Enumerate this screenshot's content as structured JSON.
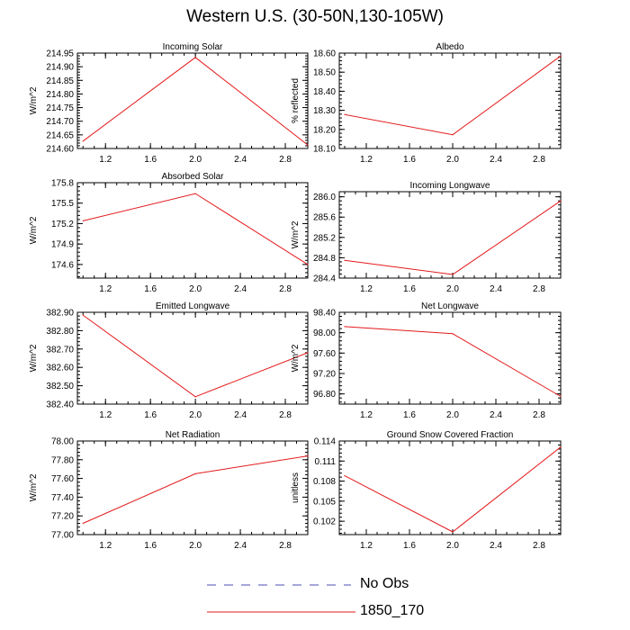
{
  "page": {
    "title": "Western U.S. (30-50N,130-105W)"
  },
  "legend": {
    "items": [
      {
        "label": "No Obs",
        "color": "#4b4bb4",
        "style": "dashed"
      },
      {
        "label": "1850_170",
        "color": "#e31a1c",
        "style": "solid"
      }
    ]
  },
  "chart_data": [
    {
      "type": "line",
      "title": "Incoming Solar",
      "ylabel": "W/m^2",
      "xlim": [
        0.95,
        3.0
      ],
      "xticks": [
        "1.2",
        "1.6",
        "2.0",
        "2.4",
        "2.8"
      ],
      "ylim": [
        214.6,
        214.95
      ],
      "yticks": [
        "214.60",
        "214.65",
        "214.70",
        "214.75",
        "214.80",
        "214.85",
        "214.90",
        "214.95"
      ],
      "series": [
        {
          "x": [
            1.0,
            2.0,
            3.0
          ],
          "values": [
            214.627,
            214.934,
            214.613
          ]
        }
      ]
    },
    {
      "type": "line",
      "title": "Albedo",
      "ylabel": "% reflected",
      "xlim": [
        0.95,
        3.0
      ],
      "xticks": [
        "1.2",
        "1.6",
        "2.0",
        "2.4",
        "2.8"
      ],
      "ylim": [
        18.1,
        18.6
      ],
      "yticks": [
        "18.10",
        "18.20",
        "18.30",
        "18.40",
        "18.50",
        "18.60"
      ],
      "series": [
        {
          "x": [
            1.0,
            2.0,
            3.0
          ],
          "values": [
            18.278,
            18.172,
            18.585
          ]
        }
      ]
    },
    {
      "type": "line",
      "title": "Absorbed Solar",
      "ylabel": "W/m^2",
      "xlim": [
        0.95,
        3.0
      ],
      "xticks": [
        "1.2",
        "1.6",
        "2.0",
        "2.4",
        "2.8"
      ],
      "ylim": [
        174.4,
        175.8
      ],
      "yticks": [
        "174.6",
        "174.9",
        "175.2",
        "175.5",
        "175.8"
      ],
      "series": [
        {
          "x": [
            1.0,
            2.0,
            3.0
          ],
          "values": [
            175.24,
            175.64,
            174.6
          ]
        }
      ]
    },
    {
      "type": "line",
      "title": "Incoming Longwave",
      "ylabel": "W/m^2",
      "xlim": [
        0.95,
        3.0
      ],
      "xticks": [
        "1.2",
        "1.6",
        "2.0",
        "2.4",
        "2.8"
      ],
      "ylim": [
        284.4,
        286.1
      ],
      "yticks": [
        "284.4",
        "284.8",
        "285.2",
        "285.6",
        "286.0"
      ],
      "series": [
        {
          "x": [
            1.0,
            2.0,
            3.0
          ],
          "values": [
            284.75,
            284.47,
            285.92
          ]
        }
      ]
    },
    {
      "type": "line",
      "title": "Emitted Longwave",
      "ylabel": "W/m^2",
      "xlim": [
        0.95,
        3.0
      ],
      "xticks": [
        "1.2",
        "1.6",
        "2.0",
        "2.4",
        "2.8"
      ],
      "ylim": [
        382.4,
        382.9
      ],
      "yticks": [
        "382.40",
        "382.50",
        "382.60",
        "382.70",
        "382.80",
        "382.90"
      ],
      "series": [
        {
          "x": [
            1.0,
            2.0,
            3.0
          ],
          "values": [
            382.885,
            382.44,
            382.68
          ]
        }
      ]
    },
    {
      "type": "line",
      "title": "Net Longwave",
      "ylabel": "W/m^2",
      "xlim": [
        0.95,
        3.0
      ],
      "xticks": [
        "1.2",
        "1.6",
        "2.0",
        "2.4",
        "2.8"
      ],
      "ylim": [
        96.6,
        98.4
      ],
      "yticks": [
        "96.80",
        "97.20",
        "97.60",
        "98.00",
        "98.40"
      ],
      "series": [
        {
          "x": [
            1.0,
            2.0,
            3.0
          ],
          "values": [
            98.12,
            97.98,
            96.75
          ]
        }
      ]
    },
    {
      "type": "line",
      "title": "Net Radiation",
      "ylabel": "W/m^2",
      "xlim": [
        0.95,
        3.0
      ],
      "xticks": [
        "1.2",
        "1.6",
        "2.0",
        "2.4",
        "2.8"
      ],
      "ylim": [
        77.0,
        78.0
      ],
      "yticks": [
        "77.00",
        "77.20",
        "77.40",
        "77.60",
        "77.80",
        "78.00"
      ],
      "series": [
        {
          "x": [
            1.0,
            2.0,
            3.0
          ],
          "values": [
            77.12,
            77.65,
            77.84
          ]
        }
      ]
    },
    {
      "type": "line",
      "title": "Ground Snow Covered Fraction",
      "ylabel": "unitless",
      "xlim": [
        0.95,
        3.0
      ],
      "xticks": [
        "1.2",
        "1.6",
        "2.0",
        "2.4",
        "2.8"
      ],
      "ylim": [
        0.1,
        0.114
      ],
      "yticks": [
        "0.102",
        "0.105",
        "0.108",
        "0.111",
        "0.114"
      ],
      "series": [
        {
          "x": [
            1.0,
            2.0,
            3.0
          ],
          "values": [
            0.1088,
            0.1004,
            0.1131
          ]
        }
      ]
    }
  ]
}
